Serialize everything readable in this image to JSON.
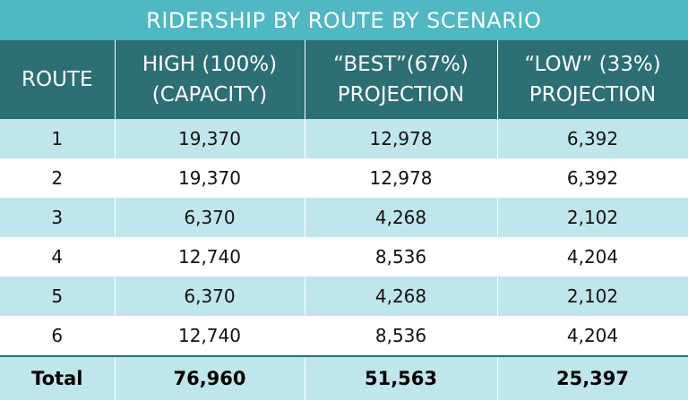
{
  "table": {
    "title": "RIDERSHIP BY ROUTE BY SCENARIO",
    "columns": [
      [
        "ROUTE"
      ],
      [
        "HIGH (100%)",
        "(CAPACITY)"
      ],
      [
        "“BEST”(67%)",
        "PROJECTION"
      ],
      [
        "“LOW” (33%)",
        "PROJECTION"
      ]
    ],
    "rows": [
      [
        "1",
        "19,370",
        "12,978",
        "6,392"
      ],
      [
        "2",
        "19,370",
        "12,978",
        "6,392"
      ],
      [
        "3",
        "6,370",
        "4,268",
        "2,102"
      ],
      [
        "4",
        "12,740",
        "8,536",
        "4,204"
      ],
      [
        "5",
        "6,370",
        "4,268",
        "2,102"
      ],
      [
        "6",
        "12,740",
        "8,536",
        "4,204"
      ]
    ],
    "total": [
      "Total",
      "76,960",
      "51,563",
      "25,397"
    ]
  }
}
